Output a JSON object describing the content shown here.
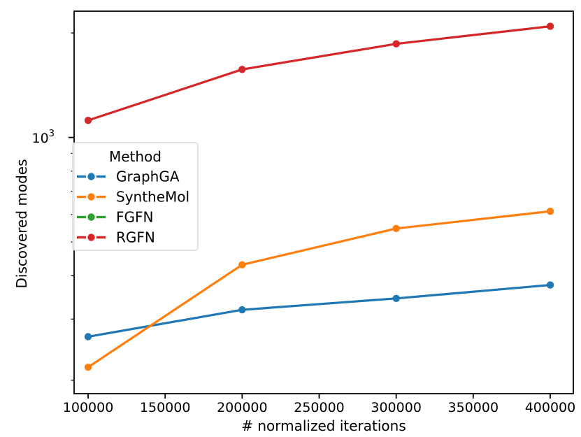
{
  "chart_data": {
    "type": "line",
    "title": "",
    "xlabel": "# normalized iterations",
    "ylabel": "Discovered modes",
    "xscale": "linear",
    "yscale": "log",
    "xlim": [
      90900,
      415000
    ],
    "ylim": [
      183,
      2310
    ],
    "grid": false,
    "x": [
      100000,
      200000,
      300000,
      400000
    ],
    "xticks": {
      "values": [
        100000,
        150000,
        200000,
        250000,
        300000,
        350000,
        400000
      ],
      "labels": [
        "100000",
        "150000",
        "200000",
        "250000",
        "300000",
        "350000",
        "400000"
      ]
    },
    "yticks": {
      "major": {
        "value": 1000,
        "label_base": "10",
        "label_exp": "3"
      },
      "minor": [
        200,
        300,
        400,
        500,
        600,
        700,
        800,
        900,
        2000
      ]
    },
    "legend": {
      "title": "Method",
      "position": "center left inside axes",
      "border_color": "#d9d9d9",
      "background": "#ffffff"
    },
    "series": [
      {
        "name": "GraphGA",
        "color": "#1f77b4",
        "values": [
          267,
          319,
          344,
          376
        ]
      },
      {
        "name": "SyntheMol",
        "color": "#ff7f0e",
        "values": [
          218,
          430,
          547,
          613
        ]
      },
      {
        "name": "FGFN",
        "color": "#2ca02c",
        "values": [],
        "note": "legend entry only; no points visible in plotted range"
      },
      {
        "name": "RGFN",
        "color": "#d62728",
        "values": [
          1120,
          1570,
          1860,
          2090
        ]
      }
    ],
    "axis_color": "#000000"
  }
}
